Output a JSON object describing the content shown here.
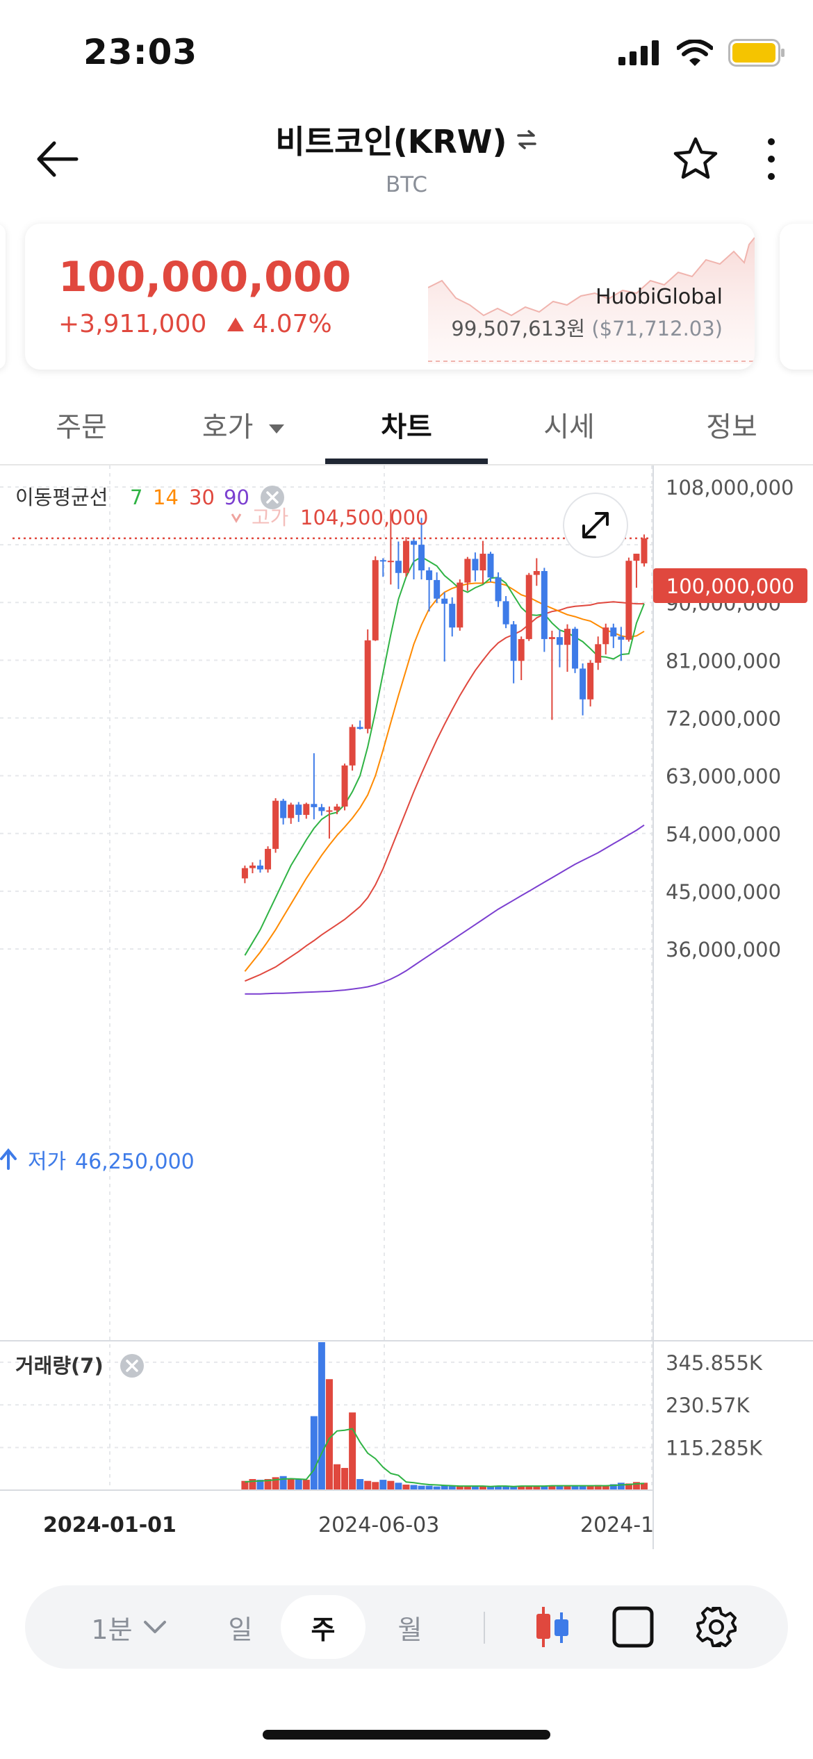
{
  "status_bar": {
    "time": "23:03"
  },
  "header": {
    "title": "비트코인(KRW)",
    "subtitle": "BTC"
  },
  "price_card": {
    "price": "100,000,000",
    "change_amount": "+3,911,000",
    "change_percent": "4.07%",
    "exchange_name": "HuobiGlobal",
    "exchange_price": "99,507,613원",
    "exchange_price_usd": "($71,712.03)",
    "up_color": "#e0483e"
  },
  "tabs": [
    {
      "label": "주문",
      "active": false
    },
    {
      "label": "호가",
      "active": false,
      "has_dropdown": true
    },
    {
      "label": "차트",
      "active": true
    },
    {
      "label": "시세",
      "active": false
    },
    {
      "label": "정보",
      "active": false
    }
  ],
  "chart_data": {
    "type": "candlestick",
    "interval": "주",
    "moving_average": {
      "label": "이동평균선",
      "periods": [
        {
          "label": "7",
          "color": "#2fb344"
        },
        {
          "label": "14",
          "color": "#ff8a00"
        },
        {
          "label": "30",
          "color": "#e0483e"
        },
        {
          "label": "90",
          "color": "#7b3fd0"
        }
      ]
    },
    "high_marker": {
      "label": "고가",
      "value": "104,500,000"
    },
    "low_marker": {
      "label": "저가",
      "value": "46,250,000"
    },
    "current_price_label": "100,000,000",
    "y_ticks": [
      "108,000,000",
      "90,000,000",
      "81,000,000",
      "72,000,000",
      "63,000,000",
      "54,000,000",
      "45,000,000",
      "36,000,000"
    ],
    "ylim": [
      28000000,
      110000000
    ],
    "candles": [
      {
        "o": 47.0,
        "h": 49.0,
        "l": 46.25,
        "c": 48.6
      },
      {
        "o": 48.6,
        "h": 49.5,
        "l": 47.8,
        "c": 49.0
      },
      {
        "o": 49.0,
        "h": 49.9,
        "l": 47.9,
        "c": 48.4
      },
      {
        "o": 48.4,
        "h": 52.0,
        "l": 47.9,
        "c": 51.6
      },
      {
        "o": 51.6,
        "h": 59.5,
        "l": 51.0,
        "c": 59.1
      },
      {
        "o": 59.1,
        "h": 59.4,
        "l": 55.4,
        "c": 56.4
      },
      {
        "o": 56.4,
        "h": 58.8,
        "l": 55.5,
        "c": 58.5
      },
      {
        "o": 58.5,
        "h": 58.9,
        "l": 55.8,
        "c": 56.9
      },
      {
        "o": 56.9,
        "h": 58.8,
        "l": 56.3,
        "c": 58.6
      },
      {
        "o": 58.6,
        "h": 66.5,
        "l": 56.2,
        "c": 58.1
      },
      {
        "o": 58.1,
        "h": 58.6,
        "l": 56.8,
        "c": 57.5
      },
      {
        "o": 57.5,
        "h": 58.2,
        "l": 53.2,
        "c": 57.6
      },
      {
        "o": 57.6,
        "h": 58.6,
        "l": 57.0,
        "c": 58.2
      },
      {
        "o": 58.2,
        "h": 64.9,
        "l": 57.6,
        "c": 64.6
      },
      {
        "o": 64.6,
        "h": 71.0,
        "l": 63.8,
        "c": 70.6
      },
      {
        "o": 70.6,
        "h": 71.6,
        "l": 70.2,
        "c": 70.3
      },
      {
        "o": 70.3,
        "h": 85.8,
        "l": 69.6,
        "c": 84.1
      },
      {
        "o": 84.1,
        "h": 97.2,
        "l": 84.0,
        "c": 96.6
      },
      {
        "o": 96.6,
        "h": 96.9,
        "l": 94.0,
        "c": 96.4
      },
      {
        "o": 96.4,
        "h": 104.5,
        "l": 92.8,
        "c": 96.5
      },
      {
        "o": 96.5,
        "h": 99.5,
        "l": 92.1,
        "c": 94.6
      },
      {
        "o": 94.6,
        "h": 100.2,
        "l": 94.0,
        "c": 99.6
      },
      {
        "o": 99.6,
        "h": 99.9,
        "l": 93.6,
        "c": 99.0
      },
      {
        "o": 99.0,
        "h": 103.2,
        "l": 93.6,
        "c": 95.0
      },
      {
        "o": 95.0,
        "h": 95.5,
        "l": 88.6,
        "c": 93.5
      },
      {
        "o": 93.5,
        "h": 94.7,
        "l": 89.9,
        "c": 90.6
      },
      {
        "o": 90.6,
        "h": 91.6,
        "l": 80.8,
        "c": 89.8
      },
      {
        "o": 89.8,
        "h": 90.8,
        "l": 84.7,
        "c": 86.1
      },
      {
        "o": 86.1,
        "h": 93.6,
        "l": 85.6,
        "c": 93.1
      },
      {
        "o": 93.1,
        "h": 97.1,
        "l": 91.8,
        "c": 96.8
      },
      {
        "o": 96.8,
        "h": 97.8,
        "l": 93.3,
        "c": 95.0
      },
      {
        "o": 95.0,
        "h": 99.6,
        "l": 92.9,
        "c": 97.6
      },
      {
        "o": 97.6,
        "h": 97.9,
        "l": 93.2,
        "c": 93.9
      },
      {
        "o": 93.9,
        "h": 94.7,
        "l": 89.3,
        "c": 90.2
      },
      {
        "o": 90.2,
        "h": 91.0,
        "l": 86.0,
        "c": 86.6
      },
      {
        "o": 86.6,
        "h": 87.1,
        "l": 77.4,
        "c": 80.9
      },
      {
        "o": 80.9,
        "h": 84.7,
        "l": 77.9,
        "c": 84.3
      },
      {
        "o": 84.3,
        "h": 94.6,
        "l": 84.0,
        "c": 94.3
      },
      {
        "o": 94.3,
        "h": 96.9,
        "l": 92.6,
        "c": 94.9
      },
      {
        "o": 94.9,
        "h": 95.4,
        "l": 82.3,
        "c": 84.3
      },
      {
        "o": 84.3,
        "h": 85.6,
        "l": 71.7,
        "c": 84.6
      },
      {
        "o": 84.6,
        "h": 85.8,
        "l": 79.9,
        "c": 83.4
      },
      {
        "o": 83.4,
        "h": 86.6,
        "l": 79.2,
        "c": 85.9
      },
      {
        "o": 85.9,
        "h": 86.2,
        "l": 79.0,
        "c": 79.7
      },
      {
        "o": 79.7,
        "h": 80.5,
        "l": 72.4,
        "c": 74.9
      },
      {
        "o": 74.9,
        "h": 81.0,
        "l": 73.8,
        "c": 80.6
      },
      {
        "o": 80.6,
        "h": 84.7,
        "l": 79.5,
        "c": 83.5
      },
      {
        "o": 83.5,
        "h": 86.7,
        "l": 81.9,
        "c": 86.1
      },
      {
        "o": 86.1,
        "h": 86.7,
        "l": 82.9,
        "c": 84.7
      },
      {
        "o": 84.7,
        "h": 86.2,
        "l": 80.9,
        "c": 84.2
      },
      {
        "o": 84.2,
        "h": 97.0,
        "l": 83.9,
        "c": 96.5
      },
      {
        "o": 96.5,
        "h": 97.6,
        "l": 92.3,
        "c": 97.6
      },
      {
        "o": 96.1,
        "h": 100.6,
        "l": 95.6,
        "c": 100.0
      }
    ],
    "ma7": [
      35.0,
      37.0,
      39.0,
      41.5,
      44.0,
      46.5,
      49.0,
      51.0,
      53.0,
      54.8,
      56.2,
      57.0,
      57.3,
      58.5,
      60.5,
      63.0,
      67.5,
      73.0,
      79.0,
      85.0,
      90.5,
      94.0,
      96.4,
      97.1,
      96.4,
      95.7,
      94.2,
      93.2,
      92.1,
      91.6,
      92.3,
      92.8,
      93.8,
      93.9,
      93.0,
      91.1,
      89.2,
      88.1,
      88.0,
      88.2,
      86.8,
      85.7,
      85.3,
      84.6,
      83.9,
      82.8,
      81.6,
      81.5,
      81.2,
      81.9,
      82.0,
      86.8,
      89.8
    ],
    "ma14": [
      32.5,
      34.0,
      35.5,
      37.2,
      39.0,
      41.0,
      43.0,
      45.0,
      47.0,
      48.8,
      50.6,
      52.2,
      53.7,
      55.0,
      56.4,
      58.0,
      60.0,
      63.0,
      67.0,
      71.3,
      75.5,
      79.5,
      83.5,
      86.5,
      89.0,
      90.5,
      91.6,
      92.2,
      92.6,
      92.9,
      93.0,
      93.0,
      93.2,
      93.0,
      92.7,
      92.0,
      91.2,
      90.8,
      90.2,
      89.6,
      89.1,
      88.6,
      88.1,
      87.8,
      87.4,
      87.1,
      86.4,
      85.7,
      85.3,
      84.8,
      84.6,
      84.8,
      85.5
    ],
    "ma30": [
      31.0,
      31.5,
      32.0,
      32.6,
      33.2,
      34.0,
      34.8,
      35.6,
      36.5,
      37.3,
      38.2,
      39.0,
      39.8,
      40.6,
      41.6,
      42.6,
      44.0,
      46.0,
      48.5,
      51.5,
      54.5,
      57.5,
      60.5,
      63.3,
      66.0,
      68.6,
      71.0,
      73.3,
      75.5,
      77.5,
      79.4,
      81.0,
      82.5,
      83.7,
      84.5,
      85.0,
      85.6,
      86.6,
      87.6,
      88.2,
      88.6,
      88.8,
      89.2,
      89.4,
      89.5,
      89.6,
      89.9,
      90.0,
      90.1,
      90.0,
      89.9,
      89.8,
      89.8
    ],
    "ma90": [
      29.0,
      29.0,
      29.0,
      29.05,
      29.1,
      29.1,
      29.15,
      29.2,
      29.25,
      29.3,
      29.35,
      29.4,
      29.5,
      29.6,
      29.75,
      29.9,
      30.1,
      30.4,
      30.8,
      31.3,
      31.9,
      32.6,
      33.4,
      34.2,
      35.0,
      35.8,
      36.6,
      37.4,
      38.2,
      39.0,
      39.8,
      40.6,
      41.4,
      42.2,
      42.9,
      43.6,
      44.3,
      45.0,
      45.7,
      46.4,
      47.1,
      47.8,
      48.5,
      49.2,
      49.8,
      50.4,
      51.0,
      51.7,
      52.4,
      53.1,
      53.8,
      54.5,
      55.3
    ],
    "volume": {
      "label": "거래량(7)",
      "y_ticks": [
        "345.855K",
        "230.57K",
        "115.285K"
      ],
      "ylim": [
        0,
        400
      ],
      "values": [
        25,
        30,
        28,
        30,
        35,
        38,
        32,
        30,
        28,
        200,
        400,
        300,
        70,
        60,
        210,
        30,
        25,
        22,
        28,
        25,
        20,
        15,
        14,
        12,
        12,
        10,
        12,
        11,
        10,
        12,
        10,
        11,
        10,
        12,
        11,
        10,
        12,
        11,
        12,
        11,
        13,
        12,
        11,
        12,
        11,
        12,
        14,
        12,
        16,
        20,
        18,
        22,
        20
      ],
      "ma": [
        22,
        24,
        25,
        26,
        28,
        30,
        31,
        30,
        29,
        55,
        100,
        140,
        160,
        162,
        166,
        130,
        100,
        85,
        62,
        45,
        40,
        22,
        20,
        17,
        15,
        14,
        13,
        12,
        11,
        11,
        11,
        11,
        10,
        11,
        11,
        10,
        11,
        11,
        11,
        11,
        12,
        12,
        12,
        12,
        12,
        12,
        12,
        12,
        13,
        14,
        15,
        17,
        18
      ]
    },
    "x_labels": [
      "2024-01-01",
      "2024-06-03",
      "2024-1"
    ]
  },
  "toolbar": {
    "interval_select": "1분",
    "day": "일",
    "week": "주",
    "month": "월",
    "active": "주"
  }
}
